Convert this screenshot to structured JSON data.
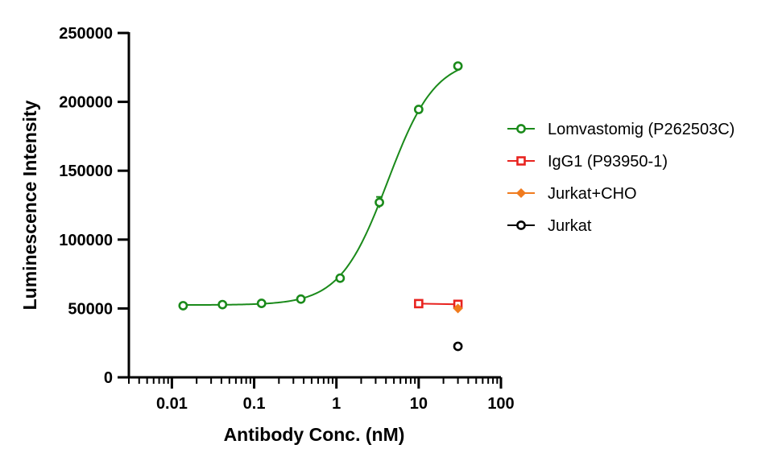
{
  "chart_data": {
    "type": "scatter",
    "xlabel": "Antibody Conc. (nM)",
    "ylabel": "Luminescence Intensity",
    "x_scale": "log",
    "xlim": [
      0.003,
      100
    ],
    "ylim": [
      0,
      250000
    ],
    "x_tick_values": [
      0.01,
      0.1,
      1,
      10,
      100
    ],
    "x_tick_labels": [
      "0.01",
      "0.1",
      "1",
      "10",
      "100"
    ],
    "y_tick_values": [
      0,
      50000,
      100000,
      150000,
      200000,
      250000
    ],
    "y_tick_labels": [
      "0",
      "50000",
      "100000",
      "150000",
      "200000",
      "250000"
    ],
    "grid": false,
    "legend_position": "right",
    "series": [
      {
        "name": "Lomvastomig (P262503C)",
        "color": "#1a8a1a",
        "marker": "circle",
        "fit": "sigmoid",
        "fit_params": {
          "bottom": 52500,
          "top": 232000,
          "ec50": 4.2,
          "hill": 1.5
        },
        "x": [
          0.0137,
          0.0412,
          0.123,
          0.37,
          1.11,
          3.33,
          10,
          30
        ],
        "y": [
          52000,
          52800,
          53700,
          56800,
          72000,
          127000,
          194500,
          226000
        ],
        "err": [
          0,
          0,
          0,
          0,
          0,
          4000,
          0,
          0
        ]
      },
      {
        "name": "IgG1 (P93950-1)",
        "color": "#e8231f",
        "marker": "square",
        "fit": "line",
        "x": [
          10,
          30
        ],
        "y": [
          53500,
          53000
        ],
        "err": [
          0,
          0
        ]
      },
      {
        "name": "Jurkat+CHO",
        "color": "#f07b1e",
        "marker": "diamond",
        "fit": "none",
        "x": [
          30
        ],
        "y": [
          50000
        ],
        "err": [
          0
        ]
      },
      {
        "name": "Jurkat",
        "color": "#000000",
        "marker": "circle",
        "fit": "none",
        "x": [
          30
        ],
        "y": [
          22500
        ],
        "err": [
          0
        ]
      }
    ]
  }
}
